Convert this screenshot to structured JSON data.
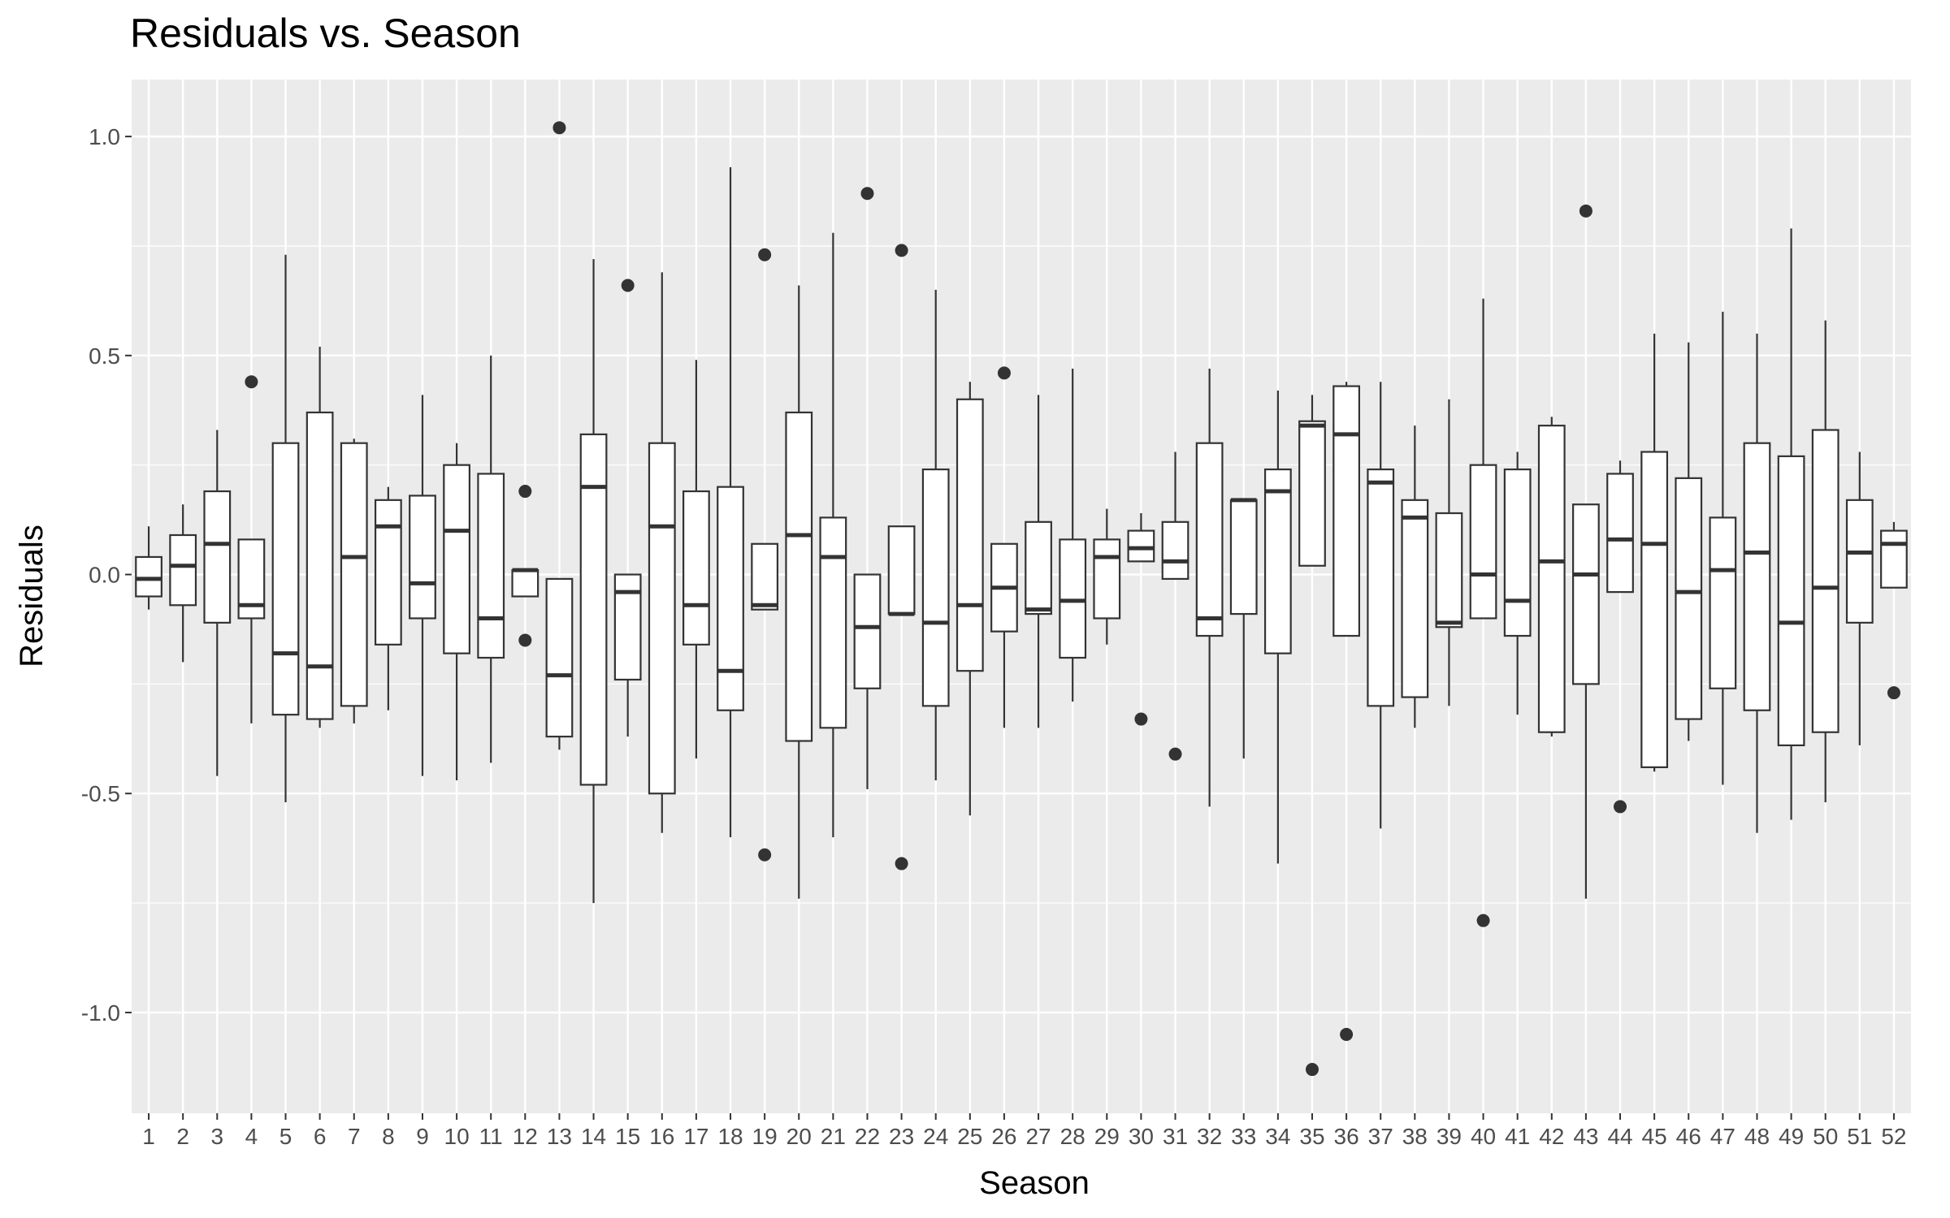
{
  "chart_data": {
    "type": "boxplot",
    "title": "Residuals vs. Season",
    "xlabel": "Season",
    "ylabel": "Residuals",
    "ylim": [
      -1.23,
      1.13
    ],
    "yticks": [
      -1.0,
      -0.5,
      0.0,
      0.5,
      1.0
    ],
    "ytick_labels": [
      "-1.0",
      "-0.5",
      "0.0",
      "0.5",
      "1.0"
    ],
    "grid": true,
    "legend": "none",
    "colors": {
      "panel": "#ebebeb",
      "grid": "#ffffff",
      "box_fill": "#ffffff",
      "box_line": "#333333",
      "tick_text": "#4d4d4d"
    },
    "categories": [
      "1",
      "2",
      "3",
      "4",
      "5",
      "6",
      "7",
      "8",
      "9",
      "10",
      "11",
      "12",
      "13",
      "14",
      "15",
      "16",
      "17",
      "18",
      "19",
      "20",
      "21",
      "22",
      "23",
      "24",
      "25",
      "26",
      "27",
      "28",
      "29",
      "30",
      "31",
      "32",
      "33",
      "34",
      "35",
      "36",
      "37",
      "38",
      "39",
      "40",
      "41",
      "42",
      "43",
      "44",
      "45",
      "46",
      "47",
      "48",
      "49",
      "50",
      "51",
      "52"
    ],
    "boxes": [
      {
        "min": -0.08,
        "q1": -0.05,
        "median": -0.01,
        "q3": 0.04,
        "max": 0.11,
        "outliers": []
      },
      {
        "min": -0.2,
        "q1": -0.07,
        "median": 0.02,
        "q3": 0.09,
        "max": 0.16,
        "outliers": []
      },
      {
        "min": -0.46,
        "q1": -0.11,
        "median": 0.07,
        "q3": 0.19,
        "max": 0.33,
        "outliers": []
      },
      {
        "min": -0.34,
        "q1": -0.1,
        "median": -0.07,
        "q3": 0.08,
        "max": 0.08,
        "outliers": [
          0.44
        ]
      },
      {
        "min": -0.52,
        "q1": -0.32,
        "median": -0.18,
        "q3": 0.3,
        "max": 0.73,
        "outliers": []
      },
      {
        "min": -0.35,
        "q1": -0.33,
        "median": -0.21,
        "q3": 0.37,
        "max": 0.52,
        "outliers": []
      },
      {
        "min": -0.34,
        "q1": -0.3,
        "median": 0.04,
        "q3": 0.3,
        "max": 0.31,
        "outliers": []
      },
      {
        "min": -0.31,
        "q1": -0.16,
        "median": 0.11,
        "q3": 0.17,
        "max": 0.2,
        "outliers": []
      },
      {
        "min": -0.46,
        "q1": -0.1,
        "median": -0.02,
        "q3": 0.18,
        "max": 0.41,
        "outliers": []
      },
      {
        "min": -0.47,
        "q1": -0.18,
        "median": 0.1,
        "q3": 0.25,
        "max": 0.3,
        "outliers": []
      },
      {
        "min": -0.43,
        "q1": -0.19,
        "median": -0.1,
        "q3": 0.23,
        "max": 0.5,
        "outliers": []
      },
      {
        "min": -0.05,
        "q1": -0.05,
        "median": 0.01,
        "q3": 0.01,
        "max": 0.01,
        "outliers": [
          0.19,
          -0.15
        ]
      },
      {
        "min": -0.4,
        "q1": -0.37,
        "median": -0.23,
        "q3": -0.01,
        "max": -0.01,
        "outliers": [
          1.02
        ]
      },
      {
        "min": -0.75,
        "q1": -0.48,
        "median": 0.2,
        "q3": 0.32,
        "max": 0.72,
        "outliers": []
      },
      {
        "min": -0.37,
        "q1": -0.24,
        "median": -0.04,
        "q3": 0.0,
        "max": 0.0,
        "outliers": [
          0.66
        ]
      },
      {
        "min": -0.59,
        "q1": -0.5,
        "median": 0.11,
        "q3": 0.3,
        "max": 0.69,
        "outliers": []
      },
      {
        "min": -0.42,
        "q1": -0.16,
        "median": -0.07,
        "q3": 0.19,
        "max": 0.49,
        "outliers": []
      },
      {
        "min": -0.6,
        "q1": -0.31,
        "median": -0.22,
        "q3": 0.2,
        "max": 0.93,
        "outliers": []
      },
      {
        "min": -0.08,
        "q1": -0.08,
        "median": -0.07,
        "q3": 0.07,
        "max": 0.07,
        "outliers": [
          0.73,
          -0.64
        ]
      },
      {
        "min": -0.74,
        "q1": -0.38,
        "median": 0.09,
        "q3": 0.37,
        "max": 0.66,
        "outliers": []
      },
      {
        "min": -0.6,
        "q1": -0.35,
        "median": 0.04,
        "q3": 0.13,
        "max": 0.78,
        "outliers": []
      },
      {
        "min": -0.49,
        "q1": -0.26,
        "median": -0.12,
        "q3": 0.0,
        "max": 0.0,
        "outliers": [
          0.87
        ]
      },
      {
        "min": -0.09,
        "q1": -0.09,
        "median": -0.09,
        "q3": 0.11,
        "max": 0.11,
        "outliers": [
          0.74,
          -0.66
        ]
      },
      {
        "min": -0.47,
        "q1": -0.3,
        "median": -0.11,
        "q3": 0.24,
        "max": 0.65,
        "outliers": []
      },
      {
        "min": -0.55,
        "q1": -0.22,
        "median": -0.07,
        "q3": 0.4,
        "max": 0.44,
        "outliers": []
      },
      {
        "min": -0.35,
        "q1": -0.13,
        "median": -0.03,
        "q3": 0.07,
        "max": 0.07,
        "outliers": [
          0.46
        ]
      },
      {
        "min": -0.35,
        "q1": -0.09,
        "median": -0.08,
        "q3": 0.12,
        "max": 0.41,
        "outliers": []
      },
      {
        "min": -0.29,
        "q1": -0.19,
        "median": -0.06,
        "q3": 0.08,
        "max": 0.47,
        "outliers": []
      },
      {
        "min": -0.16,
        "q1": -0.1,
        "median": 0.04,
        "q3": 0.08,
        "max": 0.15,
        "outliers": []
      },
      {
        "min": 0.03,
        "q1": 0.03,
        "median": 0.06,
        "q3": 0.1,
        "max": 0.14,
        "outliers": [
          -0.33
        ]
      },
      {
        "min": -0.01,
        "q1": -0.01,
        "median": 0.03,
        "q3": 0.12,
        "max": 0.28,
        "outliers": [
          -0.41
        ]
      },
      {
        "min": -0.53,
        "q1": -0.14,
        "median": -0.1,
        "q3": 0.3,
        "max": 0.47,
        "outliers": []
      },
      {
        "min": -0.42,
        "q1": -0.09,
        "median": 0.17,
        "q3": 0.17,
        "max": 0.17,
        "outliers": []
      },
      {
        "min": -0.66,
        "q1": -0.18,
        "median": 0.19,
        "q3": 0.24,
        "max": 0.42,
        "outliers": []
      },
      {
        "min": 0.02,
        "q1": 0.02,
        "median": 0.34,
        "q3": 0.35,
        "max": 0.41,
        "outliers": [
          -1.13
        ]
      },
      {
        "min": -0.14,
        "q1": -0.14,
        "median": 0.32,
        "q3": 0.43,
        "max": 0.44,
        "outliers": [
          -1.05
        ]
      },
      {
        "min": -0.58,
        "q1": -0.3,
        "median": 0.21,
        "q3": 0.24,
        "max": 0.44,
        "outliers": []
      },
      {
        "min": -0.35,
        "q1": -0.28,
        "median": 0.13,
        "q3": 0.17,
        "max": 0.34,
        "outliers": []
      },
      {
        "min": -0.3,
        "q1": -0.12,
        "median": -0.11,
        "q3": 0.14,
        "max": 0.4,
        "outliers": []
      },
      {
        "min": -0.1,
        "q1": -0.1,
        "median": 0.0,
        "q3": 0.25,
        "max": 0.63,
        "outliers": [
          -0.79
        ]
      },
      {
        "min": -0.32,
        "q1": -0.14,
        "median": -0.06,
        "q3": 0.24,
        "max": 0.28,
        "outliers": []
      },
      {
        "min": -0.37,
        "q1": -0.36,
        "median": 0.03,
        "q3": 0.34,
        "max": 0.36,
        "outliers": []
      },
      {
        "min": -0.74,
        "q1": -0.25,
        "median": 0.0,
        "q3": 0.16,
        "max": 0.16,
        "outliers": [
          0.83
        ]
      },
      {
        "min": -0.04,
        "q1": -0.04,
        "median": 0.08,
        "q3": 0.23,
        "max": 0.26,
        "outliers": [
          -0.53
        ]
      },
      {
        "min": -0.45,
        "q1": -0.44,
        "median": 0.07,
        "q3": 0.28,
        "max": 0.55,
        "outliers": []
      },
      {
        "min": -0.38,
        "q1": -0.33,
        "median": -0.04,
        "q3": 0.22,
        "max": 0.53,
        "outliers": []
      },
      {
        "min": -0.48,
        "q1": -0.26,
        "median": 0.01,
        "q3": 0.13,
        "max": 0.6,
        "outliers": []
      },
      {
        "min": -0.59,
        "q1": -0.31,
        "median": 0.05,
        "q3": 0.3,
        "max": 0.55,
        "outliers": []
      },
      {
        "min": -0.56,
        "q1": -0.39,
        "median": -0.11,
        "q3": 0.27,
        "max": 0.79,
        "outliers": []
      },
      {
        "min": -0.52,
        "q1": -0.36,
        "median": -0.03,
        "q3": 0.33,
        "max": 0.58,
        "outliers": []
      },
      {
        "min": -0.39,
        "q1": -0.11,
        "median": 0.05,
        "q3": 0.17,
        "max": 0.28,
        "outliers": []
      },
      {
        "min": -0.03,
        "q1": -0.03,
        "median": 0.07,
        "q3": 0.1,
        "max": 0.12,
        "outliers": [
          -0.27
        ]
      }
    ]
  }
}
